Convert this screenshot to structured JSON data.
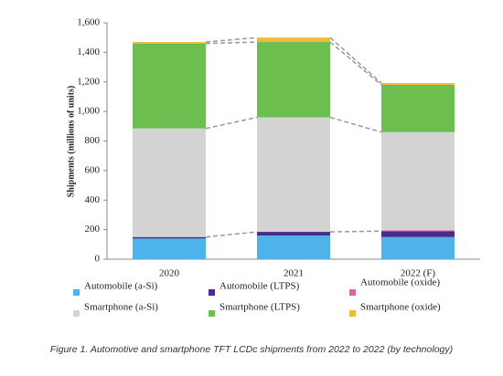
{
  "chart_data": {
    "type": "stacked_bar",
    "y_label": "Shipments (millions of units)",
    "caption": "Figure 1. Automotive and smartphone TFT LCDc shipments from 2022 to 2022 (by technology)",
    "categories": [
      "2020",
      "2021",
      "2022 (F)"
    ],
    "series": [
      {
        "name": "Automobile (a-Si)",
        "color": "#4db3ea",
        "values": [
          140,
          160,
          150
        ]
      },
      {
        "name": "Automobile (LTPS)",
        "color": "#4b2a8c",
        "values": [
          10,
          25,
          40
        ]
      },
      {
        "name": "Automobile (oxide)",
        "color": "#d06aa0",
        "values": [
          0,
          0,
          5
        ]
      },
      {
        "name": "Smartphone (a-Si)",
        "color": "#d3d3d3",
        "values": [
          735,
          775,
          665
        ]
      },
      {
        "name": "Smartphone (LTPS)",
        "color": "#6cbf4f",
        "values": [
          575,
          510,
          320
        ]
      },
      {
        "name": "Smartphone (oxide)",
        "color": "#f2b83b",
        "values": [
          10,
          30,
          12
        ]
      }
    ],
    "ylim": [
      0,
      1600
    ],
    "yticks": [
      0,
      200,
      400,
      600,
      800,
      {
        "value": 1000,
        "label": "1,000"
      },
      {
        "value": 1200,
        "label": "1,200"
      },
      {
        "value": 1400,
        "label": "1,400"
      },
      {
        "value": 1600,
        "label": "1,600"
      }
    ]
  }
}
